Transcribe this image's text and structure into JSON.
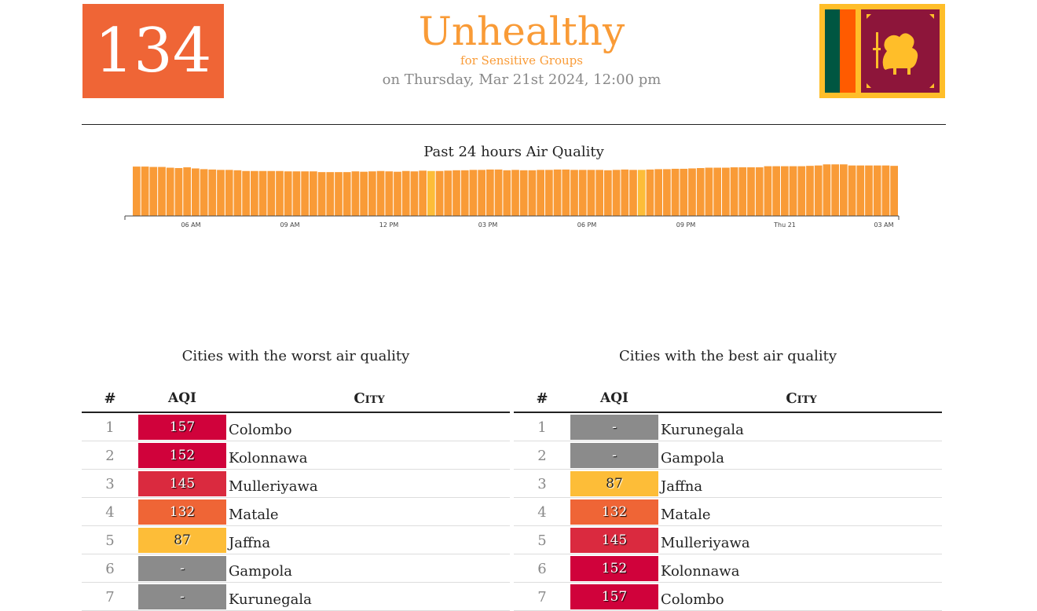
{
  "summary": {
    "aqi": "134",
    "status": "Unhealthy",
    "status_sub": "for Sensitive Groups",
    "datetime": "on Thursday, Mar 21st 2024, 12:00 pm"
  },
  "colors": {
    "unhealthy_sensitive": "#ef6536",
    "moderate_bar": "#f99b37",
    "moderate_highlight": "#fdbd38",
    "unhealthy": "#d0023b",
    "unhealthy_mid": "#da2a3f",
    "no_data": "#8b8b8b",
    "flag_green": "#005641",
    "flag_orange": "#ff5b00",
    "flag_maroon": "#8d153a",
    "flag_gold": "#ffbe29"
  },
  "chart_data": {
    "type": "bar",
    "title": "Past 24 hours Air Quality",
    "x_tick_labels": [
      "06 AM",
      "09 AM",
      "12 PM",
      "03 PM",
      "06 PM",
      "09 PM",
      "Thu 21",
      "03 AM"
    ],
    "ylim": [
      0,
      180
    ],
    "highlight_indices": [
      35,
      60
    ],
    "values": [
      134,
      134,
      133,
      133,
      131,
      130,
      132,
      129,
      127,
      126,
      125,
      125,
      124,
      122,
      122,
      122,
      122,
      122,
      121,
      121,
      121,
      121,
      119,
      119,
      119,
      119,
      121,
      120,
      121,
      122,
      121,
      120,
      122,
      121,
      123,
      122,
      122,
      123,
      124,
      124,
      125,
      125,
      126,
      126,
      124,
      125,
      124,
      124,
      125,
      125,
      126,
      126,
      125,
      125,
      125,
      125,
      124,
      125,
      126,
      125,
      125,
      126,
      127,
      127,
      128,
      128,
      129,
      130,
      131,
      131,
      131,
      132,
      132,
      132,
      132,
      135,
      135,
      135,
      135,
      135,
      136,
      137,
      140,
      140,
      140,
      137,
      137,
      137,
      137,
      137,
      136
    ]
  },
  "tables": {
    "worst": {
      "title": "Cities with the worst air quality",
      "head": {
        "rank": "#",
        "aqi": "AQI",
        "city": "City"
      },
      "rows": [
        {
          "rank": "1",
          "aqi": "157",
          "city": "Colombo",
          "color": "#d0023b"
        },
        {
          "rank": "2",
          "aqi": "152",
          "city": "Kolonnawa",
          "color": "#d0023b"
        },
        {
          "rank": "3",
          "aqi": "145",
          "city": "Mulleriyawa",
          "color": "#da2a3f"
        },
        {
          "rank": "4",
          "aqi": "132",
          "city": "Matale",
          "color": "#ef6536"
        },
        {
          "rank": "5",
          "aqi": "87",
          "city": "Jaffna",
          "color": "#fdbd38"
        },
        {
          "rank": "6",
          "aqi": "-",
          "city": "Gampola",
          "color": "#8b8b8b"
        },
        {
          "rank": "7",
          "aqi": "-",
          "city": "Kurunegala",
          "color": "#8b8b8b"
        }
      ]
    },
    "best": {
      "title": "Cities with the best air quality",
      "head": {
        "rank": "#",
        "aqi": "AQI",
        "city": "City"
      },
      "rows": [
        {
          "rank": "1",
          "aqi": "-",
          "city": "Kurunegala",
          "color": "#8b8b8b"
        },
        {
          "rank": "2",
          "aqi": "-",
          "city": "Gampola",
          "color": "#8b8b8b"
        },
        {
          "rank": "3",
          "aqi": "87",
          "city": "Jaffna",
          "color": "#fdbd38"
        },
        {
          "rank": "4",
          "aqi": "132",
          "city": "Matale",
          "color": "#ef6536"
        },
        {
          "rank": "5",
          "aqi": "145",
          "city": "Mulleriyawa",
          "color": "#da2a3f"
        },
        {
          "rank": "6",
          "aqi": "152",
          "city": "Kolonnawa",
          "color": "#d0023b"
        },
        {
          "rank": "7",
          "aqi": "157",
          "city": "Colombo",
          "color": "#d0023b"
        }
      ]
    }
  }
}
